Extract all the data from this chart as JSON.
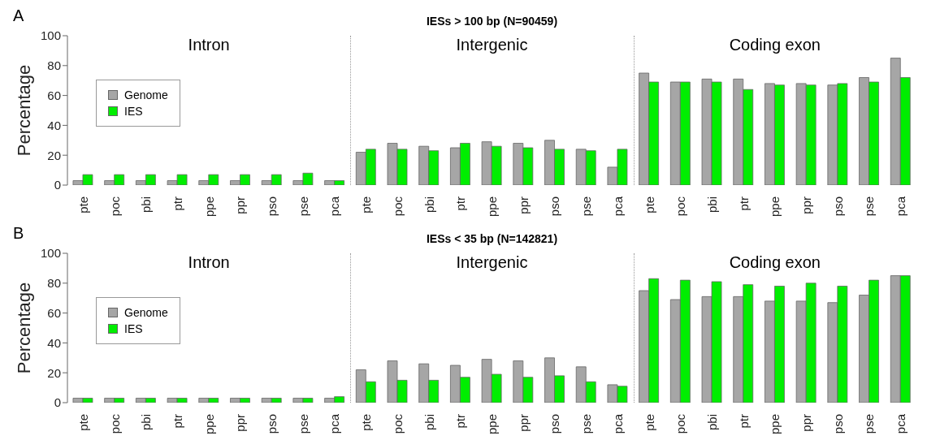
{
  "chart_data": [
    {
      "type": "bar",
      "title": "IESs > 100 bp (N=90459)",
      "ylabel": "Percentage",
      "categories": [
        "pte",
        "poc",
        "pbi",
        "ptr",
        "ppe",
        "ppr",
        "pso",
        "pse",
        "pca",
        "pte",
        "poc",
        "pbi",
        "ptr",
        "ppe",
        "ppr",
        "pso",
        "pse",
        "pca",
        "pte",
        "poc",
        "pbi",
        "ptr",
        "ppe",
        "ppr",
        "pso",
        "pse",
        "pca"
      ],
      "series": [
        {
          "name": "Genome",
          "color": "#a6a6a6",
          "values": [
            3,
            3,
            3,
            3,
            3,
            3,
            3,
            3,
            3,
            22,
            28,
            26,
            25,
            29,
            28,
            30,
            24,
            12,
            75,
            69,
            71,
            71,
            68,
            68,
            67,
            72,
            85
          ]
        },
        {
          "name": "IES",
          "color": "#00ee00",
          "values": [
            7,
            7,
            7,
            7,
            7,
            7,
            7,
            8,
            3,
            24,
            24,
            23,
            28,
            26,
            25,
            24,
            23,
            24,
            69,
            69,
            69,
            64,
            67,
            67,
            68,
            69,
            72
          ]
        }
      ],
      "ylim": [
        0,
        100
      ],
      "yticks": [
        0,
        20,
        40,
        60,
        80,
        100
      ],
      "grid": false,
      "legend": "left",
      "annotations": [
        "A",
        "Intron",
        "Intergenic",
        "Coding exon"
      ]
    },
    {
      "type": "bar",
      "title": "IESs < 35 bp (N=142821)",
      "ylabel": "Percentage",
      "categories": [
        "pte",
        "poc",
        "pbi",
        "ptr",
        "ppe",
        "ppr",
        "pso",
        "pse",
        "pca",
        "pte",
        "poc",
        "pbi",
        "ptr",
        "ppe",
        "ppr",
        "pso",
        "pse",
        "pca",
        "pte",
        "poc",
        "pbi",
        "ptr",
        "ppe",
        "ppr",
        "pso",
        "pse",
        "pca"
      ],
      "series": [
        {
          "name": "Genome",
          "color": "#a6a6a6",
          "values": [
            3,
            3,
            3,
            3,
            3,
            3,
            3,
            3,
            3,
            22,
            28,
            26,
            25,
            29,
            28,
            30,
            24,
            12,
            75,
            69,
            71,
            71,
            68,
            68,
            67,
            72,
            85
          ]
        },
        {
          "name": "IES",
          "color": "#00ee00",
          "values": [
            3,
            3,
            3,
            3,
            3,
            3,
            3,
            3,
            4,
            14,
            15,
            15,
            17,
            19,
            17,
            18,
            14,
            11,
            83,
            82,
            81,
            79,
            78,
            80,
            78,
            82,
            85
          ]
        }
      ],
      "ylim": [
        0,
        100
      ],
      "yticks": [
        0,
        20,
        40,
        60,
        80,
        100
      ],
      "grid": false,
      "legend": "left",
      "annotations": [
        "B",
        "Intron",
        "Intergenic",
        "Coding exon"
      ]
    }
  ]
}
